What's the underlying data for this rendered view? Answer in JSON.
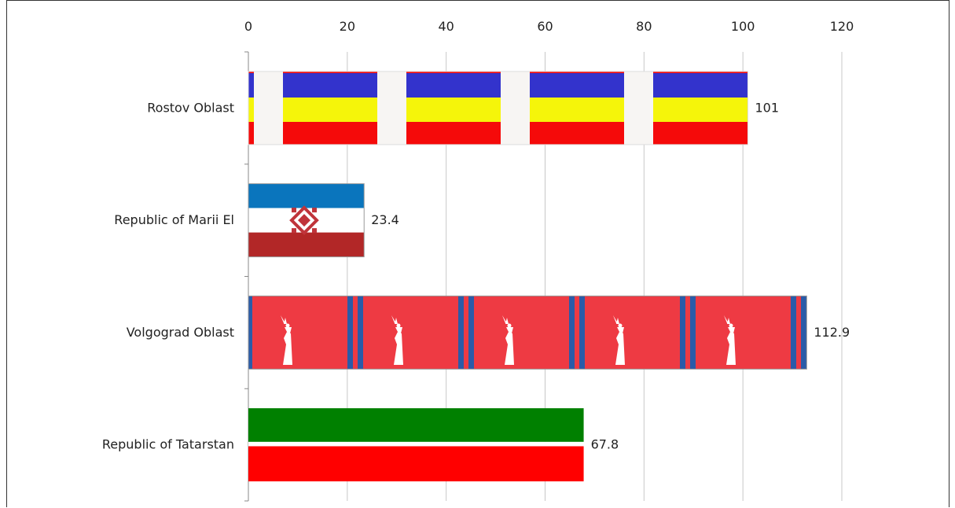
{
  "chart_data": {
    "type": "bar",
    "orientation": "horizontal",
    "categories": [
      "Rostov Oblast",
      "Republic of Marii El",
      "Volgograd Oblast",
      "Republic of Tatarstan"
    ],
    "values": [
      101,
      23.4,
      112.9,
      67.8
    ],
    "value_labels": [
      "101",
      "23.4",
      "112.9",
      "67.8"
    ],
    "xlim": [
      0,
      120
    ],
    "x_ticks": [
      0,
      20,
      40,
      60,
      80,
      100,
      120
    ],
    "x_tick_labels": [
      "0",
      "20",
      "40",
      "60",
      "80",
      "100",
      "120"
    ],
    "x_axis_position": "top",
    "grid": true,
    "bar_fills": [
      "flag-rostov-oblast",
      "flag-marii-el",
      "flag-volgograd-oblast",
      "flag-tatarstan"
    ],
    "colors": {
      "grid": "#c8c8c8",
      "axis": "#888888",
      "rostov_blue": "#3333cc",
      "rostov_yellow": "#f5f50a",
      "rostov_red": "#f50a0a",
      "rostov_gap": "#f7f5f3",
      "marii_blue": "#0a75bd",
      "marii_white": "#ffffff",
      "marii_red": "#b22727",
      "marii_ornament": "#c0343a",
      "volgograd_red": "#ee3a43",
      "volgograd_blue": "#2a5ba8",
      "volgograd_statue": "#ffffff",
      "tatarstan_green": "#008000",
      "tatarstan_white": "#ffffff",
      "tatarstan_red": "#ff0000"
    }
  }
}
